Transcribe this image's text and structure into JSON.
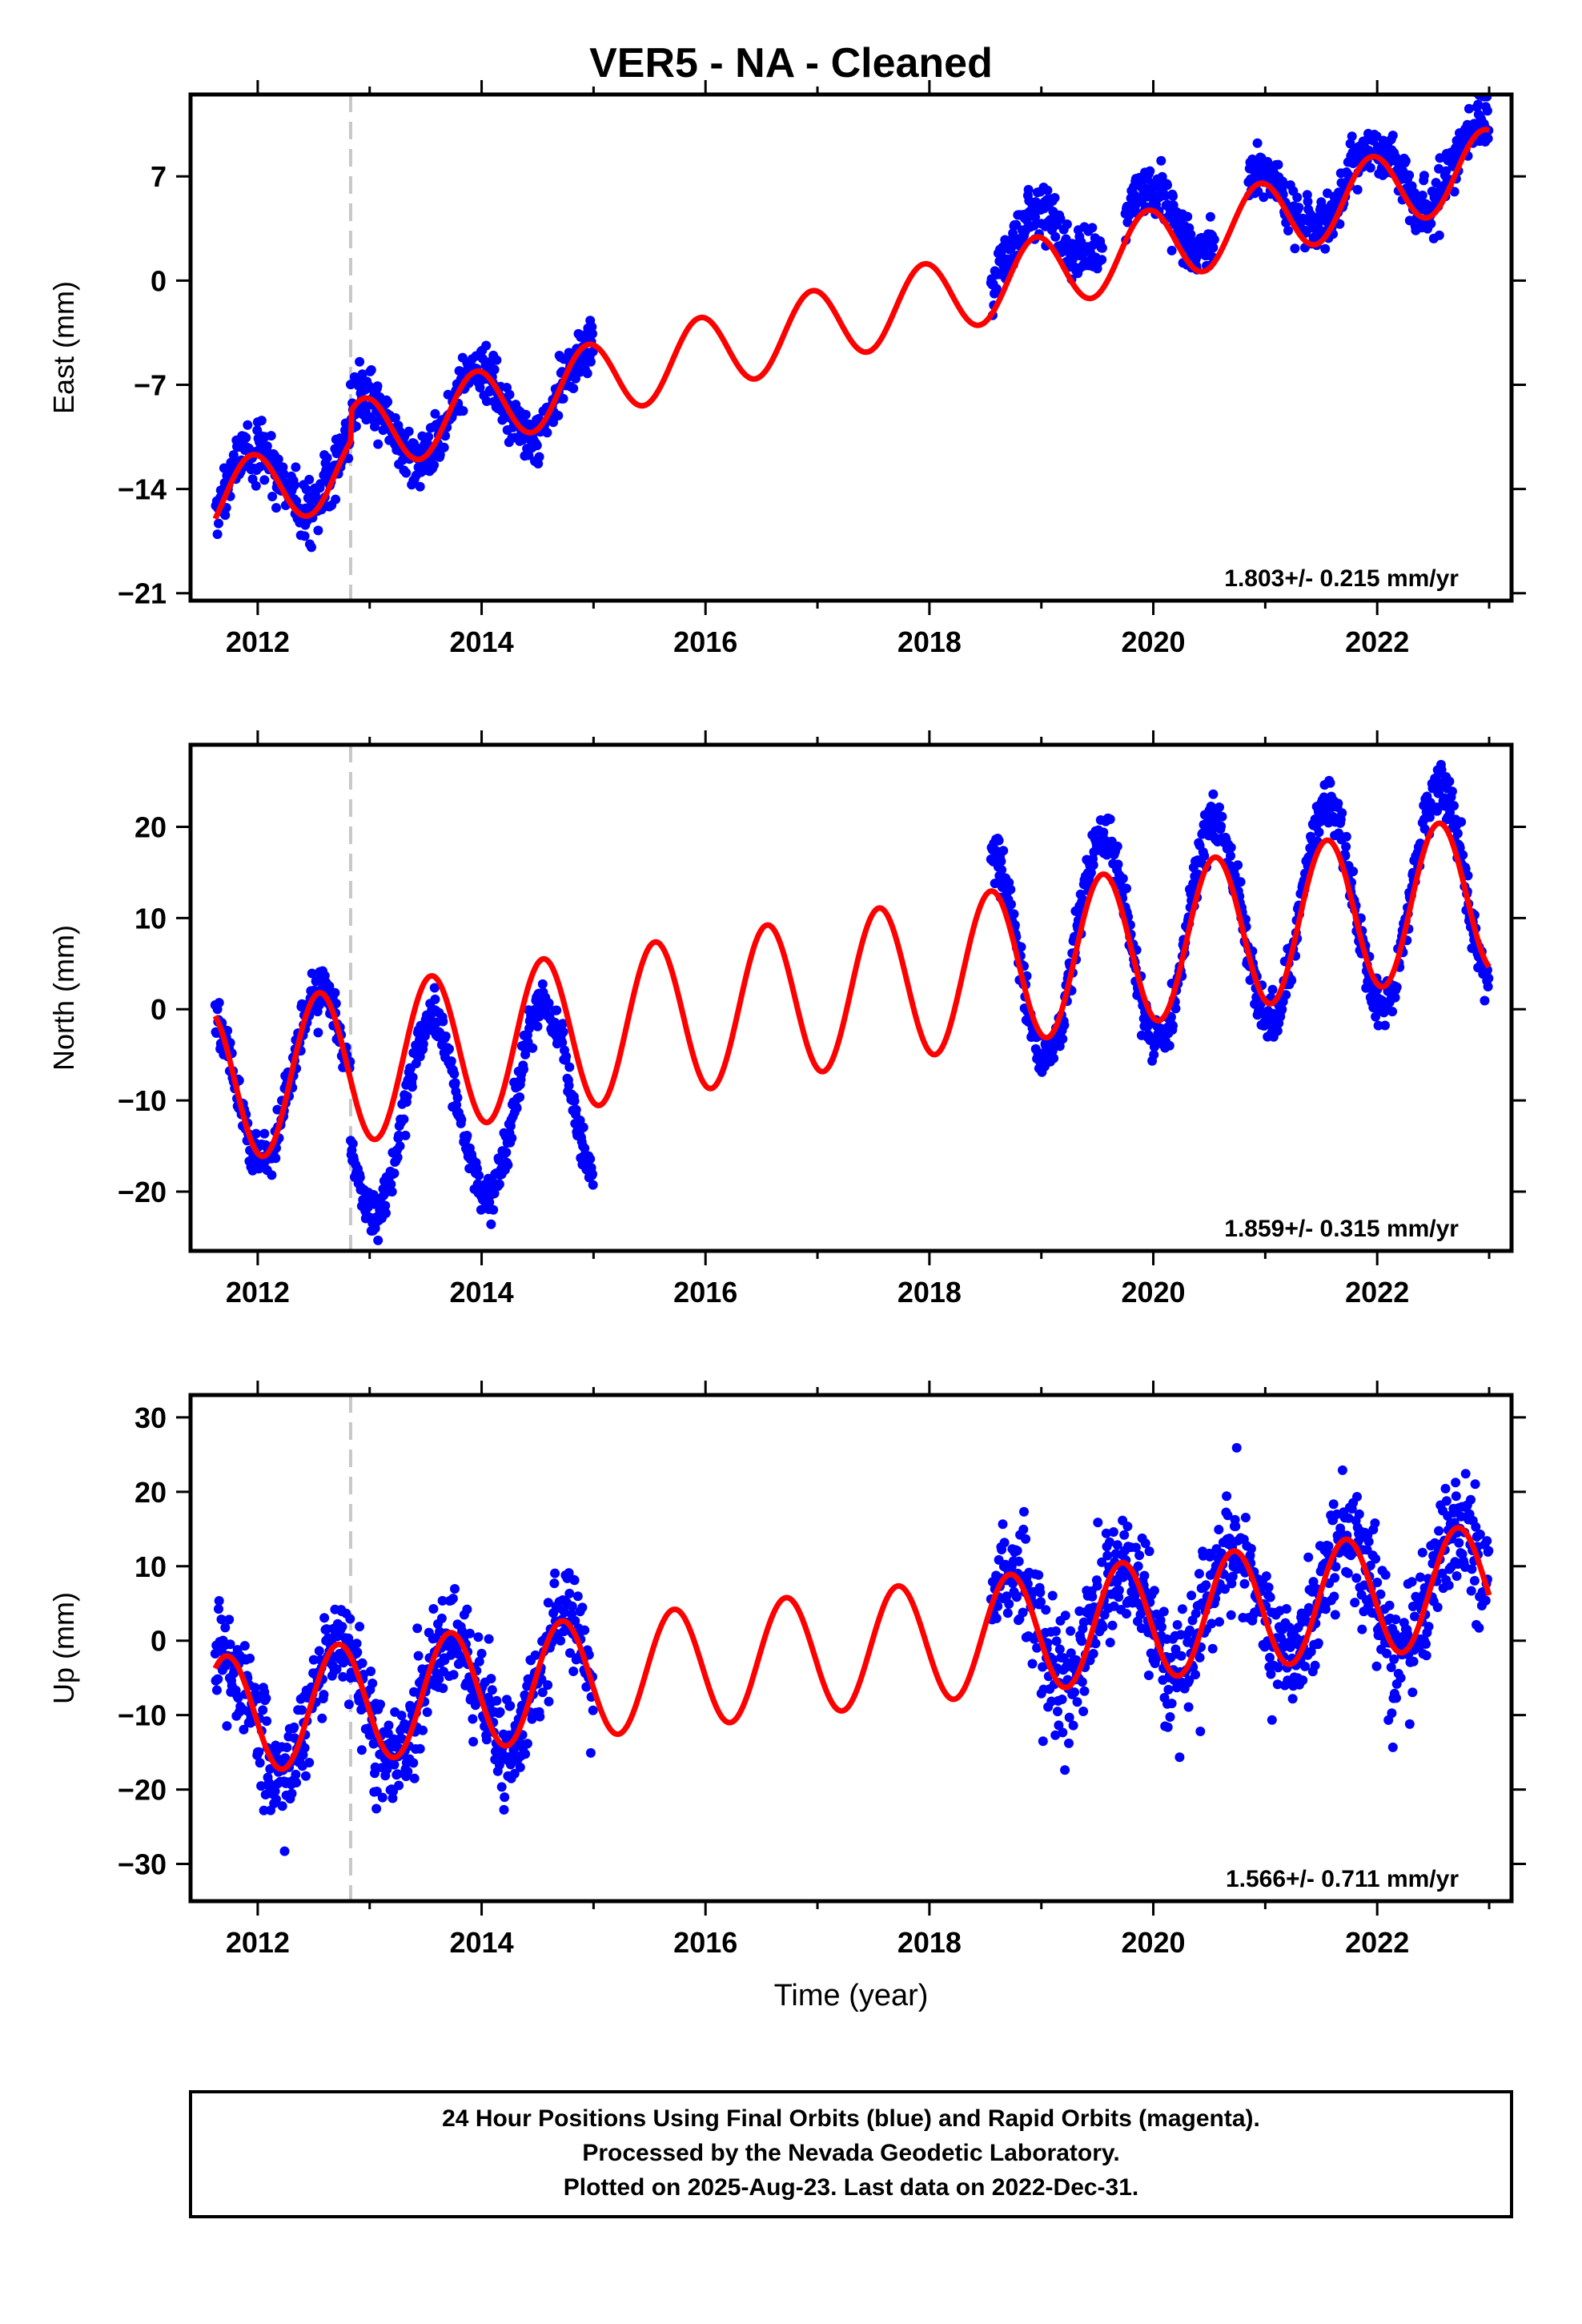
{
  "figure": {
    "title": "VER5  - NA - Cleaned",
    "colors": {
      "data": "#0000ff",
      "model": "#ff0000",
      "offset_line": "#c8c8c8"
    }
  },
  "chart_data": [
    {
      "type": "scatter",
      "component": "east",
      "ylabel": "East (mm)",
      "xlim": [
        2011.4,
        2023.2
      ],
      "ylim": [
        -21.5,
        12.5
      ],
      "xticks": [
        2012,
        2014,
        2016,
        2018,
        2020,
        2022
      ],
      "yticks": [
        -21,
        -14,
        -7,
        0,
        7
      ],
      "rate_label": "1.803+/- 0.215 mm/yr",
      "offset_epoch": 2012.83,
      "trend": {
        "slope": 1.803,
        "ref_year": 2017.5,
        "intercept": -2.2
      },
      "seasonal": {
        "amplitude": 2.5,
        "peak_year_frac": 0.95
      },
      "model_offset": {
        "epoch": 2012.83,
        "step": 2.0
      },
      "data_segments": [
        {
          "start": 2011.62,
          "end": 2012.83,
          "bias": 0.4,
          "amp_scale": 1.0,
          "scatter": 0.9
        },
        {
          "start": 2012.83,
          "end": 2015.0,
          "bias": 0.0,
          "amp_scale": 1.0,
          "scatter": 0.9
        },
        {
          "start": 2018.55,
          "end": 2019.33,
          "bias": 1.8,
          "amp_scale": 1.0,
          "scatter": 0.9
        },
        {
          "start": 2019.33,
          "end": 2019.55,
          "bias": 3.0,
          "amp_scale": 1.0,
          "scatter": 0.9
        },
        {
          "start": 2019.75,
          "end": 2020.55,
          "bias": 1.5,
          "amp_scale": 1.0,
          "scatter": 0.9
        },
        {
          "start": 2020.85,
          "end": 2023.0,
          "bias": 0.8,
          "amp_scale": 1.0,
          "scatter": 0.9
        }
      ]
    },
    {
      "type": "scatter",
      "component": "north",
      "ylabel": "North (mm)",
      "xlim": [
        2011.4,
        2023.2
      ],
      "ylim": [
        -26.5,
        29
      ],
      "xticks": [
        2012,
        2014,
        2016,
        2018,
        2020,
        2022
      ],
      "yticks": [
        -20,
        -10,
        0,
        10,
        20
      ],
      "rate_label": "1.859+/- 0.315 mm/yr",
      "offset_epoch": 2012.83,
      "trend": {
        "slope": 1.859,
        "ref_year": 2017.5,
        "intercept": 2.5
      },
      "seasonal": {
        "amplitude": 8.5,
        "peak_year_frac": 0.55
      },
      "model_offset": {
        "epoch": 2012.83,
        "step": 0
      },
      "data_segments": [
        {
          "start": 2011.62,
          "end": 2012.83,
          "bias": 0.0,
          "amp_scale": 1.0,
          "scatter": 1.2
        },
        {
          "start": 2012.83,
          "end": 2015.0,
          "bias": -6.5,
          "amp_scale": 1.2,
          "scatter": 1.2
        },
        {
          "start": 2018.55,
          "end": 2023.0,
          "bias": 1.0,
          "amp_scale": 1.35,
          "scatter": 1.3
        }
      ]
    },
    {
      "type": "scatter",
      "component": "up",
      "ylabel": "Up (mm)",
      "xlabel": "Time (year)",
      "xlim": [
        2011.4,
        2023.2
      ],
      "ylim": [
        -35,
        33
      ],
      "xticks": [
        2012,
        2014,
        2016,
        2018,
        2020,
        2022
      ],
      "yticks": [
        -30,
        -20,
        -10,
        0,
        10,
        20,
        30
      ],
      "rate_label": "1.566+/- 0.711 mm/yr",
      "offset_epoch": 2012.83,
      "trend": {
        "slope": 1.566,
        "ref_year": 2017.5,
        "intercept": -1.0
      },
      "seasonal": {
        "amplitude": 8.0,
        "peak_year_frac": 0.72
      },
      "model_offset": {
        "epoch": 2012.83,
        "step": 0
      },
      "data_segments": [
        {
          "start": 2011.62,
          "end": 2012.83,
          "bias": 0.0,
          "amp_scale": 1.0,
          "scatter": 3.5
        },
        {
          "start": 2012.83,
          "end": 2015.0,
          "bias": 0.0,
          "amp_scale": 1.0,
          "scatter": 3.5
        },
        {
          "start": 2018.55,
          "end": 2023.0,
          "bias": 0.5,
          "amp_scale": 1.0,
          "scatter": 4.0
        }
      ]
    }
  ],
  "footer": {
    "line1": "24 Hour Positions Using Final Orbits (blue) and Rapid Orbits (magenta).",
    "line2": "Processed by the Nevada Geodetic Laboratory.",
    "line3": "Plotted on 2025-Aug-23. Last data on 2022-Dec-31."
  }
}
